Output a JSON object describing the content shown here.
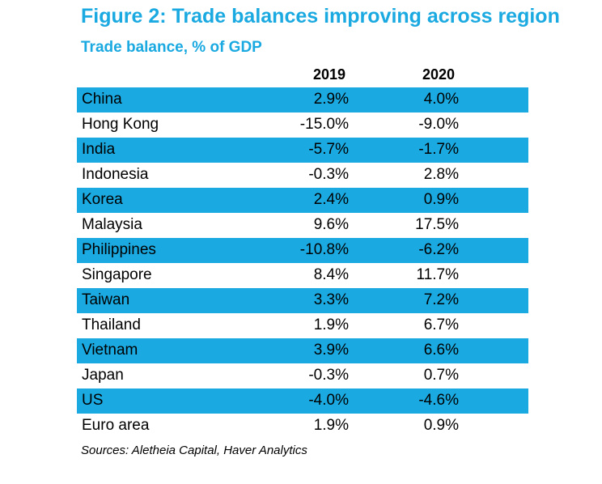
{
  "chart_data": {
    "type": "table",
    "title": "Figure 2: Trade balances improving across region",
    "subtitle": "Trade balance, % of GDP",
    "columns": [
      "2019",
      "2020"
    ],
    "rows": [
      {
        "label": "China",
        "values": [
          "2.9%",
          "4.0%"
        ]
      },
      {
        "label": "Hong Kong",
        "values": [
          "-15.0%",
          "-9.0%"
        ]
      },
      {
        "label": "India",
        "values": [
          "-5.7%",
          "-1.7%"
        ]
      },
      {
        "label": "Indonesia",
        "values": [
          "-0.3%",
          "2.8%"
        ]
      },
      {
        "label": "Korea",
        "values": [
          "2.4%",
          "0.9%"
        ]
      },
      {
        "label": "Malaysia",
        "values": [
          "9.6%",
          "17.5%"
        ]
      },
      {
        "label": "Philippines",
        "values": [
          "-10.8%",
          "-6.2%"
        ]
      },
      {
        "label": "Singapore",
        "values": [
          "8.4%",
          "11.7%"
        ]
      },
      {
        "label": "Taiwan",
        "values": [
          "3.3%",
          "7.2%"
        ]
      },
      {
        "label": "Thailand",
        "values": [
          "1.9%",
          "6.7%"
        ]
      },
      {
        "label": "Vietnam",
        "values": [
          "3.9%",
          "6.6%"
        ]
      },
      {
        "label": "Japan",
        "values": [
          "-0.3%",
          "0.7%"
        ]
      },
      {
        "label": "US",
        "values": [
          "-4.0%",
          "-4.6%"
        ]
      },
      {
        "label": "Euro area",
        "values": [
          "1.9%",
          "0.9%"
        ]
      }
    ],
    "source": "Sources: Aletheia Capital, Haver Analytics",
    "colors": {
      "title": "#1aa9e0",
      "row_shade": "#1aa9e0"
    }
  }
}
